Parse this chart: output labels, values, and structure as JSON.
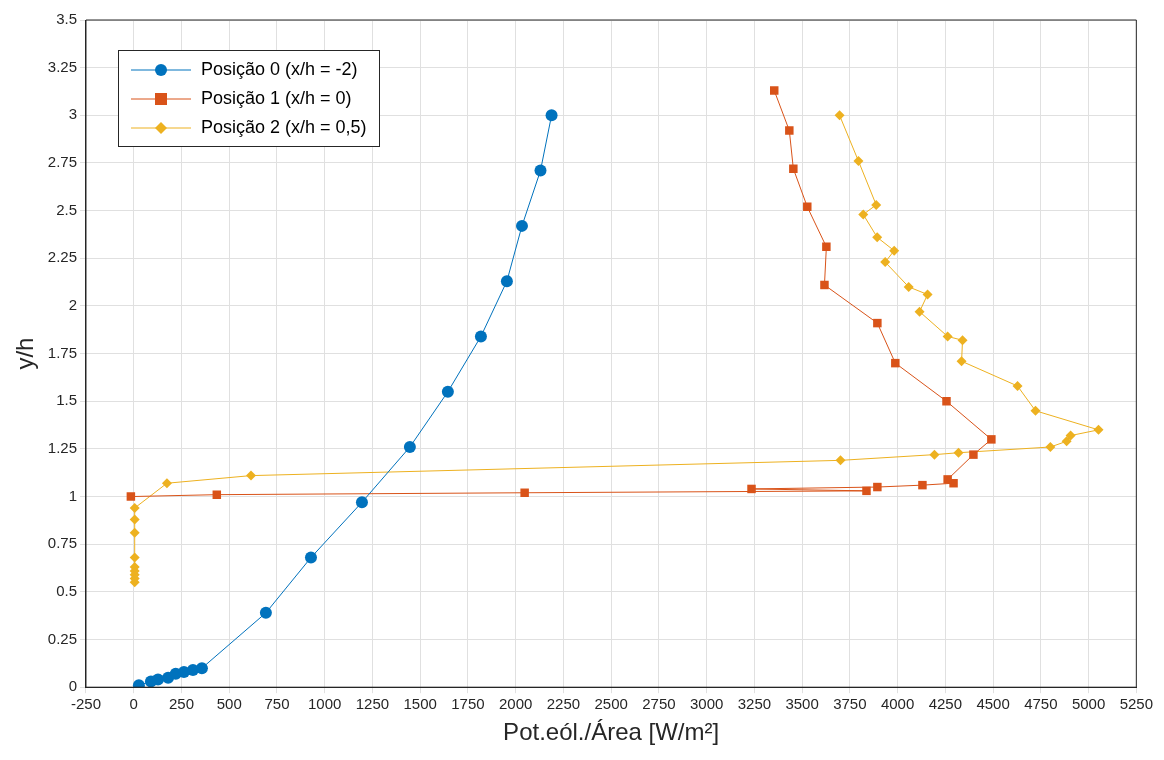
{
  "chart_data": {
    "type": "line",
    "xlabel": "Pot.eól./Área [W/m²]",
    "ylabel": "y/h",
    "xlim": [
      -250,
      5250
    ],
    "ylim": [
      0,
      3.5
    ],
    "xticks": [
      -250,
      0,
      250,
      500,
      750,
      1000,
      1250,
      1500,
      1750,
      2000,
      2250,
      2500,
      2750,
      3000,
      3250,
      3500,
      3750,
      4000,
      4250,
      4500,
      4750,
      5000,
      5250
    ],
    "yticks": [
      0,
      0.25,
      0.5,
      0.75,
      1,
      1.25,
      1.5,
      1.75,
      2,
      2.25,
      2.5,
      2.75,
      3,
      3.25,
      3.5
    ],
    "grid": true,
    "legend": "top left",
    "series": [
      {
        "name": "Posição 0 (x/h = -2)",
        "color": "#0072bd",
        "marker": "circle",
        "x": [
          27,
          90,
          127,
          180,
          220,
          263,
          310,
          357,
          692,
          928,
          1195,
          1446,
          1645,
          1818,
          1954,
          2033,
          2130,
          2188
        ],
        "values": [
          0.01,
          0.03,
          0.04,
          0.05,
          0.07,
          0.08,
          0.09,
          0.1,
          0.39,
          0.68,
          0.97,
          1.26,
          1.55,
          1.84,
          2.13,
          2.42,
          2.71,
          3.0
        ]
      },
      {
        "name": "Posição 1 (x/h = 0)",
        "color": "#d95319",
        "marker": "square",
        "x": [
          -15,
          435,
          2047,
          3837,
          3235,
          3894,
          4130,
          4293,
          4262,
          4397,
          4491,
          4256,
          3988,
          3894,
          3617,
          3627,
          3527,
          3454,
          3433,
          3354
        ],
        "values": [
          1.0,
          1.01,
          1.02,
          1.03,
          1.04,
          1.05,
          1.06,
          1.07,
          1.09,
          1.22,
          1.3,
          1.5,
          1.7,
          1.91,
          2.11,
          2.31,
          2.52,
          2.72,
          2.92,
          3.13
        ]
      },
      {
        "name": "Posição 2 (x/h = 0,5)",
        "color": "#edb120",
        "marker": "diamond",
        "x": [
          5,
          5,
          5,
          5,
          5,
          5,
          5,
          5,
          5,
          174,
          614,
          3701,
          4193,
          4319,
          4800,
          4885,
          4906,
          5052,
          4722,
          4628,
          4335,
          4340,
          4262,
          4115,
          4157,
          4058,
          3935,
          3982,
          3893,
          3820,
          3888,
          3795,
          3696
        ],
        "values": [
          0.55,
          0.57,
          0.59,
          0.61,
          0.63,
          0.68,
          0.81,
          0.88,
          0.94,
          1.07,
          1.11,
          1.19,
          1.22,
          1.23,
          1.26,
          1.29,
          1.32,
          1.35,
          1.45,
          1.58,
          1.71,
          1.82,
          1.84,
          1.97,
          2.06,
          2.1,
          2.23,
          2.29,
          2.36,
          2.48,
          2.53,
          2.76,
          3.0
        ]
      }
    ]
  }
}
